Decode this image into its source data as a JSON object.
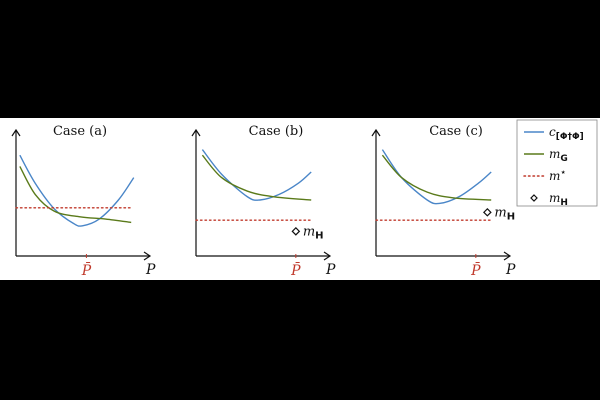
{
  "chart_data": [
    {
      "type": "line",
      "title": "Case (a)",
      "xlabel": "P",
      "xtick_label": "P̄",
      "xlim": [
        0,
        10
      ],
      "ylim": [
        0,
        10
      ],
      "x_marker": 5.5,
      "series": [
        {
          "key": "c",
          "color": "#4a86c8",
          "points": [
            [
              0.3,
              9.0
            ],
            [
              1.5,
              6.5
            ],
            [
              3,
              4.2
            ],
            [
              4.5,
              2.9
            ],
            [
              5.2,
              2.7
            ],
            [
              6.5,
              3.3
            ],
            [
              8,
              5.0
            ],
            [
              9.2,
              7.0
            ]
          ]
        },
        {
          "key": "mg",
          "color": "#5a7a1a",
          "points": [
            [
              0.3,
              8.0
            ],
            [
              1.5,
              5.5
            ],
            [
              3,
              4.0
            ],
            [
              5,
              3.5
            ],
            [
              7,
              3.3
            ],
            [
              9,
              3.0
            ]
          ]
        },
        {
          "key": "mstar",
          "color": "#c0392b",
          "points": [
            [
              0,
              4.3
            ],
            [
              9,
              4.3
            ]
          ]
        }
      ],
      "m_H": null
    },
    {
      "type": "line",
      "title": "Case (b)",
      "xlabel": "P",
      "xtick_label": "P̄",
      "xlim": [
        0,
        10
      ],
      "ylim": [
        0,
        10
      ],
      "x_marker": 7.8,
      "series": [
        {
          "key": "c",
          "color": "#4a86c8",
          "points": [
            [
              0.5,
              9.5
            ],
            [
              2,
              7.3
            ],
            [
              4,
              5.3
            ],
            [
              5,
              5.0
            ],
            [
              6.5,
              5.5
            ],
            [
              8,
              6.5
            ],
            [
              9,
              7.5
            ]
          ]
        },
        {
          "key": "mg",
          "color": "#5a7a1a",
          "points": [
            [
              0.5,
              9.0
            ],
            [
              2,
              7.0
            ],
            [
              4,
              5.8
            ],
            [
              6,
              5.3
            ],
            [
              9,
              5.0
            ]
          ]
        },
        {
          "key": "mstar",
          "color": "#c0392b",
          "points": [
            [
              0,
              3.2
            ],
            [
              9,
              3.2
            ]
          ]
        }
      ],
      "m_H": {
        "x": 7.8,
        "y": 2.2,
        "label": "m",
        "sub": "H"
      }
    },
    {
      "type": "line",
      "title": "Case (c)",
      "xlabel": "P",
      "xtick_label": "P̄",
      "xlim": [
        0,
        10
      ],
      "ylim": [
        0,
        10
      ],
      "x_marker": 7.8,
      "series": [
        {
          "key": "c",
          "color": "#4a86c8",
          "points": [
            [
              0.5,
              9.5
            ],
            [
              2,
              7.0
            ],
            [
              4,
              5.0
            ],
            [
              5,
              4.7
            ],
            [
              6.5,
              5.3
            ],
            [
              8,
              6.5
            ],
            [
              9,
              7.5
            ]
          ]
        },
        {
          "key": "mg",
          "color": "#5a7a1a",
          "points": [
            [
              0.5,
              9.0
            ],
            [
              2,
              7.0
            ],
            [
              4,
              5.7
            ],
            [
              6,
              5.2
            ],
            [
              9,
              5.0
            ]
          ]
        },
        {
          "key": "mstar",
          "color": "#c0392b",
          "points": [
            [
              0,
              3.2
            ],
            [
              9,
              3.2
            ]
          ]
        }
      ],
      "m_H": {
        "x": 8.7,
        "y": 3.9,
        "label": "m",
        "sub": "H"
      }
    }
  ],
  "legend": {
    "placement": "right",
    "entries": [
      {
        "key": "c",
        "label": "c",
        "sub": "[Φ†Φ]",
        "style": "line",
        "color": "#4a86c8"
      },
      {
        "key": "mg",
        "label": "m",
        "sub": "G",
        "style": "line",
        "color": "#5a7a1a"
      },
      {
        "key": "mstar",
        "label": "m",
        "sub": "⋆",
        "style": "dotted",
        "color": "#c0392b"
      },
      {
        "key": "mh",
        "label": "m",
        "sub": "H",
        "style": "diamond",
        "color": "#111111"
      }
    ]
  }
}
